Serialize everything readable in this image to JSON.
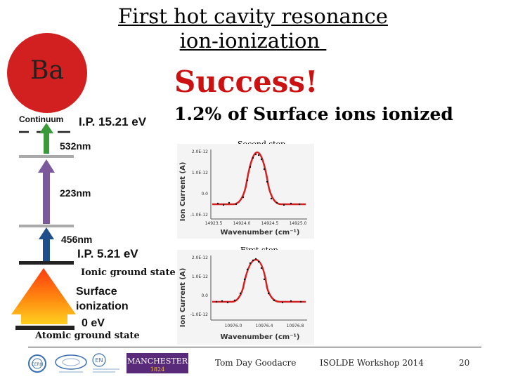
{
  "title": {
    "line1": "First hot cavity resonance",
    "line2": "ion-ionization "
  },
  "element_symbol": "Ba",
  "headline": "Success!",
  "subheadline": "1.2% of Surface ions ionized",
  "level_diagram": {
    "continuum_label": "Continuum",
    "ip_continuum": "I.P. 15.21 eV",
    "step3_wavelength": "532nm",
    "step2_wavelength": "223nm",
    "step1_wavelength": "456nm",
    "ip_ionic": "I.P. 5.21 eV",
    "ionic_ground_label": "Ionic ground state",
    "surface_ionization_label": "Surface ionization",
    "zero_energy_label": "0 eV",
    "atomic_ground_label": "Atomic ground state"
  },
  "plots": [
    {
      "caption": "Second step",
      "ylabel": "Ion Current (A)",
      "xlabel": "Wavenumber (cm⁻¹)",
      "yticks": [
        "2.0E-12",
        "1.0E-12",
        "0.0",
        "-1.0E-12"
      ],
      "xticks": [
        "14923.5",
        "14924.0",
        "14924.5",
        "14925.0"
      ]
    },
    {
      "caption": "First step",
      "ylabel": "Ion Current (A)",
      "xlabel": "Wavenumber (cm⁻¹)",
      "yticks": [
        "2.0E-12",
        "1.0E-12",
        "0.0",
        "-1.0E-12"
      ],
      "xticks": [
        "10976.0",
        "10976.4",
        "10976.8"
      ]
    }
  ],
  "footer": {
    "author": "Tom Day Goodacre",
    "event": "ISOLDE Workshop 2014",
    "page": "20",
    "manchester_logo": "MANCHESTER",
    "manchester_year": "1824",
    "cern_logo": "CERN",
    "en_logo": "EN"
  },
  "colors": {
    "headline": "#cc1111",
    "element_circle": "#d22020",
    "arrow_green": "#3a9a3a",
    "arrow_purple": "#7a5a9a",
    "arrow_blue": "#1f4f8a",
    "fit_line": "#d42020"
  }
}
